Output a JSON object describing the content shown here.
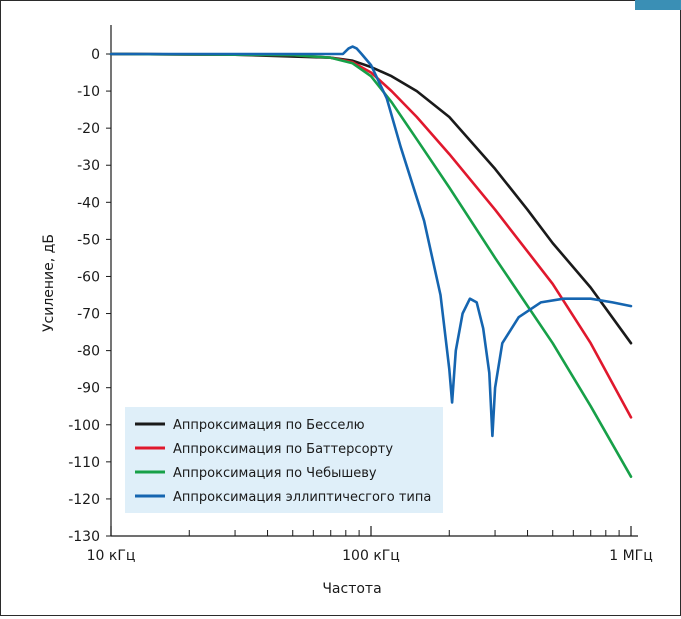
{
  "chart_data": {
    "type": "line",
    "title": "",
    "xlabel": "Частота",
    "ylabel": "Усиление, дБ",
    "x_scale": "log",
    "x_unit": "Гц",
    "xlim": [
      10000,
      1000000
    ],
    "ylim": [
      -130,
      0
    ],
    "x_ticks": [
      {
        "value": 10000,
        "label": "10 кГц"
      },
      {
        "value": 100000,
        "label": "100 кГц"
      },
      {
        "value": 1000000,
        "label": "1 МГц"
      }
    ],
    "y_ticks": [
      0,
      -10,
      -20,
      -30,
      -40,
      -50,
      -60,
      -70,
      -80,
      -90,
      -100,
      -110,
      -120,
      -130
    ],
    "grid": false,
    "legend_position": "bottom-left",
    "series": [
      {
        "name": "Аппроксимация по Бесселю",
        "color": "#1a1a1a",
        "points": [
          [
            10000,
            0
          ],
          [
            30000,
            -0.2
          ],
          [
            70000,
            -1
          ],
          [
            85000,
            -1.8
          ],
          [
            100000,
            -3.5
          ],
          [
            120000,
            -6
          ],
          [
            150000,
            -10
          ],
          [
            200000,
            -17
          ],
          [
            300000,
            -31
          ],
          [
            400000,
            -42
          ],
          [
            500000,
            -51
          ],
          [
            700000,
            -63
          ],
          [
            1000000,
            -78
          ]
        ]
      },
      {
        "name": "Аппроксимация по Баттерсорту",
        "color": "#e0182d",
        "points": [
          [
            10000,
            0
          ],
          [
            50000,
            -0.3
          ],
          [
            70000,
            -1
          ],
          [
            85000,
            -2.2
          ],
          [
            100000,
            -5
          ],
          [
            120000,
            -10
          ],
          [
            150000,
            -17
          ],
          [
            200000,
            -27
          ],
          [
            300000,
            -42
          ],
          [
            500000,
            -62
          ],
          [
            700000,
            -78
          ],
          [
            1000000,
            -98
          ]
        ]
      },
      {
        "name": "Аппроксимация по Чебышеву",
        "color": "#17a048",
        "points": [
          [
            10000,
            0
          ],
          [
            50000,
            -0.3
          ],
          [
            70000,
            -1
          ],
          [
            85000,
            -2.5
          ],
          [
            100000,
            -6
          ],
          [
            120000,
            -13
          ],
          [
            150000,
            -23
          ],
          [
            200000,
            -36
          ],
          [
            300000,
            -55
          ],
          [
            500000,
            -78
          ],
          [
            700000,
            -95
          ],
          [
            1000000,
            -114
          ]
        ]
      },
      {
        "name": "Аппроксимация эллиптичесгого типа",
        "color": "#1565b0",
        "points": [
          [
            10000,
            0
          ],
          [
            78000,
            0
          ],
          [
            82000,
            1.5
          ],
          [
            85000,
            2
          ],
          [
            88000,
            1.5
          ],
          [
            92000,
            0
          ],
          [
            100000,
            -3
          ],
          [
            115000,
            -12
          ],
          [
            130000,
            -25
          ],
          [
            160000,
            -45
          ],
          [
            185000,
            -65
          ],
          [
            200000,
            -85
          ],
          [
            205000,
            -94
          ],
          [
            212000,
            -80
          ],
          [
            225000,
            -70
          ],
          [
            240000,
            -66
          ],
          [
            255000,
            -67
          ],
          [
            270000,
            -74
          ],
          [
            285000,
            -86
          ],
          [
            293000,
            -103
          ],
          [
            300000,
            -90
          ],
          [
            320000,
            -78
          ],
          [
            370000,
            -71
          ],
          [
            450000,
            -67
          ],
          [
            550000,
            -66
          ],
          [
            700000,
            -66
          ],
          [
            850000,
            -67
          ],
          [
            1000000,
            -68
          ]
        ]
      }
    ]
  },
  "decor": {
    "corner_tab_color": "#3a8fb5",
    "legend_bg": "#dfeff9"
  }
}
